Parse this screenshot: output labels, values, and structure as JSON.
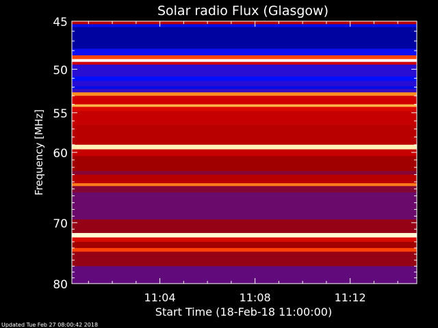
{
  "footer": {
    "updated": "Updated Tue Feb 27 08:00:42 2018"
  },
  "chart_data": {
    "type": "heatmap",
    "title": "Solar radio Flux (Glasgow)",
    "ylabel": "Frequency [MHz]",
    "xlabel": "Start Time (18-Feb-18 11:00:00)",
    "y_scale": "log",
    "ylim": [
      45,
      80
    ],
    "xlim_minutes": [
      0.3,
      14.8
    ],
    "y_ticks": [
      45,
      50,
      55,
      60,
      70,
      80
    ],
    "x_ticks": [
      {
        "minute": 4,
        "label": "11:04"
      },
      {
        "minute": 8,
        "label": "11:08"
      },
      {
        "minute": 12,
        "label": "11:12"
      }
    ],
    "colormap": [
      "#00001a",
      "#000088",
      "#0010ff",
      "#3a0cc0",
      "#6a0a6a",
      "#a00000",
      "#d00000",
      "#ff3000",
      "#ff9020",
      "#ffe070",
      "#ffffff"
    ],
    "bands": [
      {
        "f": [
          45.0,
          45.3
        ],
        "level": 0.55
      },
      {
        "f": [
          45.3,
          45.6
        ],
        "level": 0.18
      },
      {
        "f": [
          45.6,
          47.8
        ],
        "level": 0.12
      },
      {
        "f": [
          47.8,
          48.5
        ],
        "level": 0.22
      },
      {
        "f": [
          48.5,
          48.9
        ],
        "level": 0.72
      },
      {
        "f": [
          48.9,
          49.2
        ],
        "level": 1.0
      },
      {
        "f": [
          49.2,
          49.5
        ],
        "level": 0.6
      },
      {
        "f": [
          49.5,
          50.8
        ],
        "level": 0.27
      },
      {
        "f": [
          50.8,
          51.3
        ],
        "level": 0.2
      },
      {
        "f": [
          51.3,
          51.9
        ],
        "level": 0.27
      },
      {
        "f": [
          51.9,
          52.2
        ],
        "level": 0.18
      },
      {
        "f": [
          52.2,
          52.6
        ],
        "level": 0.3
      },
      {
        "f": [
          52.6,
          53.0
        ],
        "level": 0.8
      },
      {
        "f": [
          53.0,
          54.0
        ],
        "level": 0.6
      },
      {
        "f": [
          54.0,
          54.3
        ],
        "level": 0.85
      },
      {
        "f": [
          54.3,
          54.8
        ],
        "level": 0.62
      },
      {
        "f": [
          54.8,
          56.5
        ],
        "level": 0.58
      },
      {
        "f": [
          56.5,
          59.0
        ],
        "level": 0.55
      },
      {
        "f": [
          59.0,
          59.6
        ],
        "level": 0.95
      },
      {
        "f": [
          59.6,
          60.5
        ],
        "level": 0.58
      },
      {
        "f": [
          60.5,
          62.5
        ],
        "level": 0.5
      },
      {
        "f": [
          62.5,
          63.0
        ],
        "level": 0.45
      },
      {
        "f": [
          63.0,
          64.2
        ],
        "level": 0.55
      },
      {
        "f": [
          64.2,
          64.6
        ],
        "level": 0.78
      },
      {
        "f": [
          64.6,
          65.5
        ],
        "level": 0.45
      },
      {
        "f": [
          65.5,
          69.5
        ],
        "level": 0.4
      },
      {
        "f": [
          69.5,
          71.6
        ],
        "level": 0.48
      },
      {
        "f": [
          71.6,
          72.3
        ],
        "level": 0.97
      },
      {
        "f": [
          72.3,
          73.0
        ],
        "level": 0.62
      },
      {
        "f": [
          73.0,
          74.0
        ],
        "level": 0.5
      },
      {
        "f": [
          74.0,
          74.6
        ],
        "level": 0.72
      },
      {
        "f": [
          74.6,
          77.0
        ],
        "level": 0.48
      },
      {
        "f": [
          77.0,
          80.0
        ],
        "level": 0.38
      }
    ]
  }
}
